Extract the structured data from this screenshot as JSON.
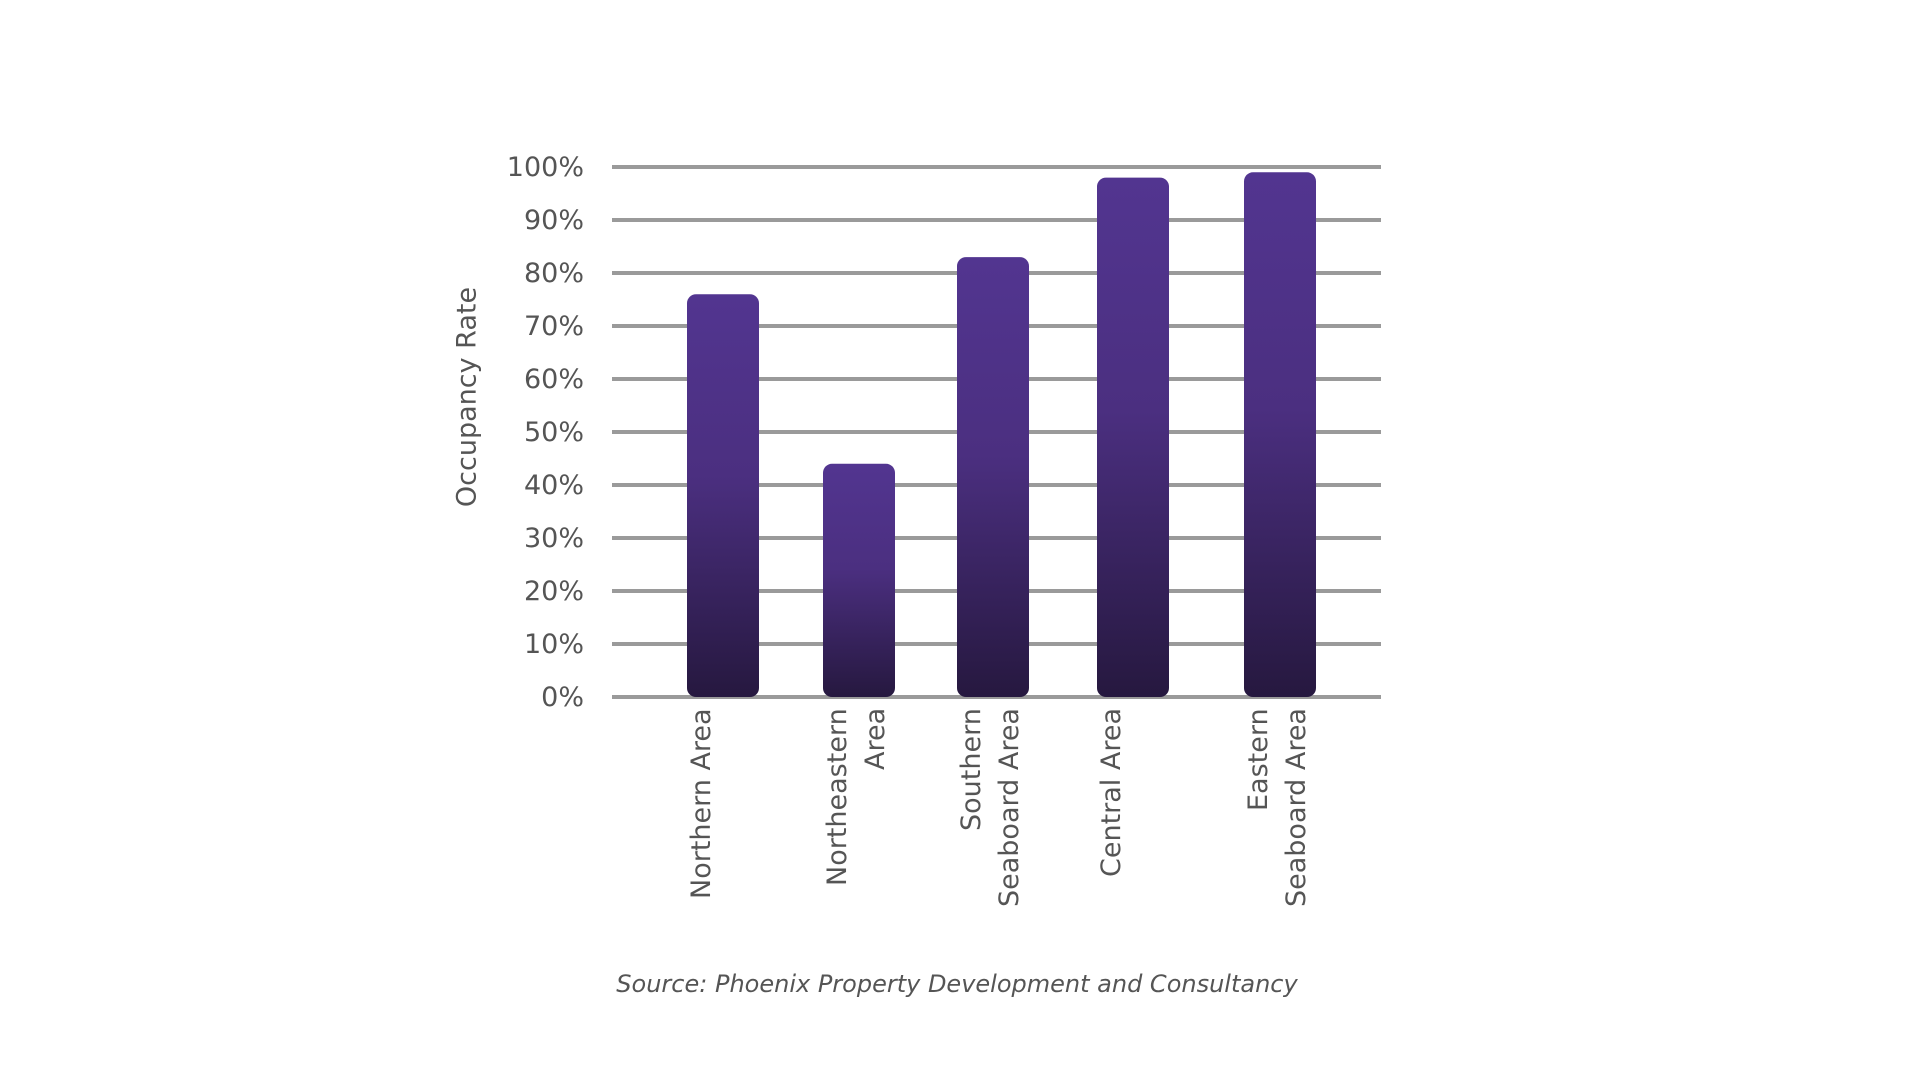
{
  "chart_data": {
    "type": "bar",
    "categories": [
      "Northern Area",
      "Northeastern\nArea",
      "Southern\nSeaboard Area",
      "Central Area",
      "Eastern\nSeaboard Area"
    ],
    "values": [
      76,
      44,
      83,
      98,
      99
    ],
    "ylabel": "Occupancy Rate",
    "xlabel": "",
    "ylim": [
      0,
      100
    ],
    "yticks": [
      "0%",
      "10%",
      "20%",
      "30%",
      "40%",
      "50%",
      "60%",
      "70%",
      "80%",
      "90%",
      "100%"
    ],
    "grid": true,
    "colors": {
      "bar_top": "#523590",
      "bar_bottom": "#26183f",
      "grid": "#9a9a9a",
      "text": "#555555"
    },
    "source": "Source: Phoenix Property Development and Consultancy"
  }
}
